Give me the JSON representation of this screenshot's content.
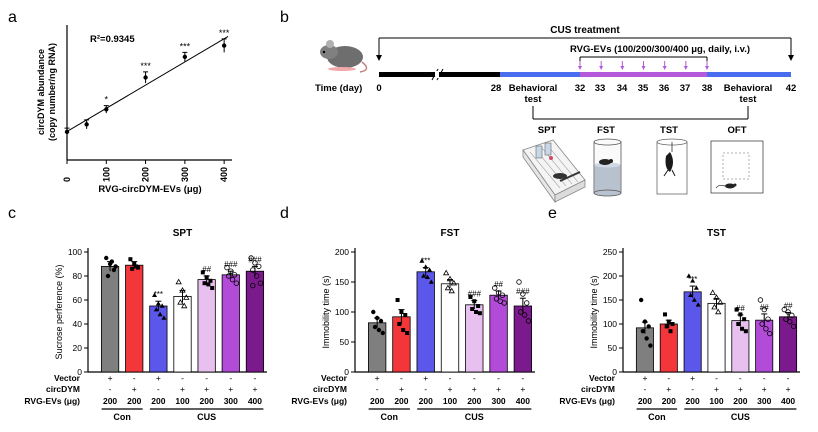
{
  "panel_letters": {
    "a": "a",
    "b": "b",
    "c": "c",
    "d": "d",
    "e": "e"
  },
  "colors": {
    "gray": "#7f7f7f",
    "red": "#f2363a",
    "blue": "#5b57ea",
    "white": "#ffffff",
    "light_purple": "#e7c0ef",
    "purple": "#b24bd8",
    "dark_purple": "#7b1a8c",
    "timeline_blue": "#4a6df0",
    "timeline_purple": "#b459d9"
  },
  "groups": {
    "vector_label": "Vector",
    "circ_label": "circDYM",
    "evs_label": "RVG-EVs (μg)",
    "vector": [
      "+",
      "-",
      "+",
      "-",
      "-",
      "-",
      "-"
    ],
    "circ": [
      "-",
      "+",
      "-",
      "+",
      "+",
      "+",
      "+"
    ],
    "doses": [
      "200",
      "200",
      "200",
      "100",
      "200",
      "300",
      "400"
    ],
    "con_label": "Con",
    "cus_label": "CUS"
  },
  "panel_b": {
    "cus_label": "CUS treatment",
    "evs_label": "RVG-EVs (100/200/300/400 μg, daily, i.v.)",
    "time_label": "Time (day)",
    "ticks": [
      "0",
      "28",
      "32",
      "33",
      "34",
      "35",
      "36",
      "37",
      "38",
      "42"
    ],
    "behavior_left": [
      "Behavioral",
      "test"
    ],
    "behavior_right": [
      "Behavioral",
      "test"
    ],
    "tests": [
      "SPT",
      "FST",
      "TST",
      "OFT"
    ]
  },
  "chart_data": [
    {
      "type": "scatter",
      "panel": "a",
      "annotation": "R²=0.9345",
      "xlabel": "RVG-circDYM-EVs (μg)",
      "ylabel_lines": [
        "circDYM abundance",
        "(copy number/ng RNA)"
      ],
      "xticks": [
        "0",
        "100",
        "200",
        "300",
        "400"
      ],
      "xlim": [
        0,
        420
      ],
      "ylim": [
        0,
        3.6
      ],
      "x": [
        0,
        50,
        100,
        200,
        300,
        400
      ],
      "y": [
        0.75,
        0.95,
        1.35,
        2.2,
        2.75,
        3.05
      ],
      "err": [
        0.1,
        0.12,
        0.1,
        0.15,
        0.12,
        0.18
      ],
      "stars": [
        "",
        "",
        "*",
        "***",
        "***",
        "***"
      ]
    },
    {
      "type": "bar",
      "panel": "c",
      "title": "SPT",
      "ylabel": "Sucrose perference (%)",
      "ylim": [
        0,
        100
      ],
      "yticks": [
        "0",
        "20",
        "40",
        "60",
        "80",
        "100"
      ],
      "values": [
        88,
        89,
        55,
        63,
        77,
        81,
        84
      ],
      "err": [
        4,
        3,
        4,
        5,
        3,
        3,
        4
      ],
      "stars": [
        "",
        "",
        "***",
        "",
        "##",
        "###",
        "###"
      ],
      "points": [
        [
          95,
          90,
          85,
          80,
          92,
          88
        ],
        [
          94,
          90,
          87,
          86,
          88
        ],
        [
          64,
          57,
          55,
          52,
          48,
          45
        ],
        [
          75,
          68,
          62,
          58,
          55
        ],
        [
          83,
          79,
          76,
          74,
          73,
          70
        ],
        [
          87,
          84,
          81,
          80,
          77,
          74
        ],
        [
          95,
          91,
          88,
          85,
          80,
          74,
          72
        ]
      ]
    },
    {
      "type": "bar",
      "panel": "d",
      "title": "FST",
      "ylabel": "Immobility time (s)",
      "ylim": [
        0,
        200
      ],
      "yticks": [
        "0",
        "50",
        "100",
        "150",
        "200"
      ],
      "values": [
        82,
        92,
        167,
        147,
        112,
        128,
        110
      ],
      "err": [
        8,
        12,
        7,
        7,
        7,
        7,
        13
      ],
      "stars": [
        "",
        "",
        "***",
        "",
        "###",
        "##",
        "###"
      ],
      "points": [
        [
          100,
          90,
          85,
          75,
          70,
          65
        ],
        [
          120,
          100,
          95,
          80,
          70,
          65
        ],
        [
          185,
          175,
          170,
          160,
          158,
          150
        ],
        [
          165,
          155,
          148,
          140,
          135
        ],
        [
          125,
          118,
          110,
          105,
          100,
          98
        ],
        [
          140,
          132,
          128,
          122,
          118,
          115
        ],
        [
          150,
          130,
          115,
          100,
          95,
          85
        ]
      ]
    },
    {
      "type": "bar",
      "panel": "e",
      "title": "TST",
      "ylabel": "Immobility time (s)",
      "ylim": [
        0,
        250
      ],
      "yticks": [
        "0",
        "50",
        "100",
        "150",
        "200",
        "250"
      ],
      "values": [
        92,
        100,
        167,
        143,
        107,
        108,
        115
      ],
      "err": [
        12,
        8,
        12,
        10,
        12,
        13,
        9
      ],
      "stars": [
        "",
        "",
        "***",
        "",
        "##",
        "##",
        "##"
      ],
      "points": [
        [
          150,
          105,
          95,
          85,
          70,
          55
        ],
        [
          120,
          105,
          100,
          95,
          85
        ],
        [
          200,
          190,
          175,
          160,
          150,
          140
        ],
        [
          165,
          155,
          145,
          135,
          125
        ],
        [
          130,
          120,
          110,
          100,
          90,
          85
        ],
        [
          150,
          130,
          110,
          100,
          90,
          80
        ],
        [
          130,
          125,
          118,
          110,
          105,
          95
        ]
      ]
    }
  ]
}
